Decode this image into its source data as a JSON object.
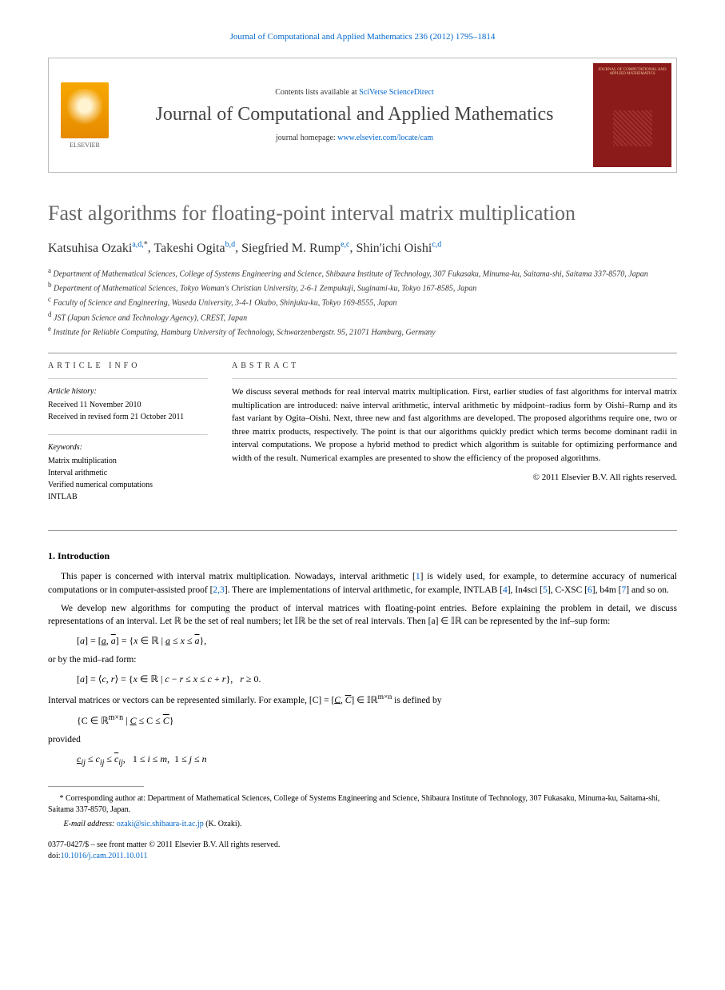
{
  "header_ref": "Journal of Computational and Applied Mathematics 236 (2012) 1795–1814",
  "masthead": {
    "publisher": "ELSEVIER",
    "contents_prefix": "Contents lists available at ",
    "contents_link": "SciVerse ScienceDirect",
    "journal_name": "Journal of Computational and Applied Mathematics",
    "homepage_prefix": "journal homepage: ",
    "homepage_link": "www.elsevier.com/locate/cam",
    "cover_text": "JOURNAL OF COMPUTATIONAL AND APPLIED MATHEMATICS"
  },
  "title": "Fast algorithms for floating-point interval matrix multiplication",
  "authors": [
    {
      "name": "Katsuhisa Ozaki",
      "sup": "a,d,",
      "star": "*"
    },
    {
      "name": "Takeshi Ogita",
      "sup": "b,d"
    },
    {
      "name": "Siegfried M. Rump",
      "sup": "e,c"
    },
    {
      "name": "Shin'ichi Oishi",
      "sup": "c,d"
    }
  ],
  "affiliations": [
    {
      "label": "a",
      "text": "Department of Mathematical Sciences, College of Systems Engineering and Science, Shibaura Institute of Technology, 307 Fukasaku, Minuma-ku, Saitama-shi, Saitama 337-8570, Japan"
    },
    {
      "label": "b",
      "text": "Department of Mathematical Sciences, Tokyo Woman's Christian University, 2-6-1 Zempukuji, Suginami-ku, Tokyo 167-8585, Japan"
    },
    {
      "label": "c",
      "text": "Faculty of Science and Engineering, Waseda University, 3-4-1 Okubo, Shinjuku-ku, Tokyo 169-8555, Japan"
    },
    {
      "label": "d",
      "text": "JST (Japan Science and Technology Agency), CREST, Japan"
    },
    {
      "label": "e",
      "text": "Institute for Reliable Computing, Hamburg University of Technology, Schwarzenbergstr. 95, 21071 Hamburg, Germany"
    }
  ],
  "article_info": {
    "heading": "ARTICLE INFO",
    "history_label": "Article history:",
    "history": [
      "Received 11 November 2010",
      "Received in revised form 21 October 2011"
    ],
    "keywords_label": "Keywords:",
    "keywords": [
      "Matrix multiplication",
      "Interval arithmetic",
      "Verified numerical computations",
      "INTLAB"
    ]
  },
  "abstract": {
    "heading": "ABSTRACT",
    "text": "We discuss several methods for real interval matrix multiplication. First, earlier studies of fast algorithms for interval matrix multiplication are introduced: naive interval arithmetic, interval arithmetic by midpoint–radius form by Oishi–Rump and its fast variant by Ogita–Oishi. Next, three new and fast algorithms are developed. The proposed algorithms require one, two or three matrix products, respectively. The point is that our algorithms quickly predict which terms become dominant radii in interval computations. We propose a hybrid method to predict which algorithm is suitable for optimizing performance and width of the result. Numerical examples are presented to show the efficiency of the proposed algorithms.",
    "copyright": "© 2011 Elsevier B.V. All rights reserved."
  },
  "section1": {
    "heading": "1. Introduction",
    "p1_a": "This paper is concerned with interval matrix multiplication. Nowadays, interval arithmetic [",
    "p1_ref1": "1",
    "p1_b": "] is widely used, for example, to determine accuracy of numerical computations or in computer-assisted proof [",
    "p1_ref23": "2,3",
    "p1_c": "]. There are implementations of interval arithmetic, for example, INTLAB [",
    "p1_ref4": "4",
    "p1_d": "], In4sci [",
    "p1_ref5": "5",
    "p1_e": "], C-XSC [",
    "p1_ref6": "6",
    "p1_f": "], b4m [",
    "p1_ref7": "7",
    "p1_g": "] and so on.",
    "p2": "We develop new algorithms for computing the product of interval matrices with floating-point entries. Before explaining the problem in detail, we discuss representations of an interval. Let ℝ be the set of real numbers; let 𝕀ℝ be the set of real intervals. Then [a] ∈ 𝕀ℝ can be represented by the inf–sup form:",
    "eq1": "[a] = [a̲, a̅] = {x ∈ ℝ | a̲ ≤ x ≤ a̅},",
    "p3": "or by the mid–rad form:",
    "eq2": "[a] = ⟨c, r⟩ = {x ∈ ℝ | c − r ≤ x ≤ c + r}, r ≥ 0.",
    "p4_a": "Interval matrices or vectors can be represented similarly. For example, [C] = [",
    "p4_b": ", ",
    "p4_c": "] ∈ 𝕀ℝ",
    "p4_sup": "m×n",
    "p4_d": " is defined by",
    "eq3_a": "{C ∈ ℝ",
    "eq3_sup": "m×n",
    "eq3_b": " | ",
    "eq3_c": " ≤ C ≤ ",
    "eq3_d": "}",
    "p5": "provided",
    "eq4": "c̲ᵢⱼ ≤ cᵢⱼ ≤ c̅ᵢⱼ, 1 ≤ i ≤ m, 1 ≤ j ≤ n"
  },
  "footnote": {
    "corr_label": "*",
    "corr_text": "Corresponding author at: Department of Mathematical Sciences, College of Systems Engineering and Science, Shibaura Institute of Technology, 307 Fukasaku, Minuma-ku, Saitama-shi, Saitama 337-8570, Japan.",
    "email_label": "E-mail address: ",
    "email": "ozaki@sic.shibaura-it.ac.jp",
    "email_who": " (K. Ozaki)."
  },
  "bottom": {
    "issn": "0377-0427/$ – see front matter © 2011 Elsevier B.V. All rights reserved.",
    "doi_label": "doi:",
    "doi": "10.1016/j.cam.2011.10.011"
  }
}
